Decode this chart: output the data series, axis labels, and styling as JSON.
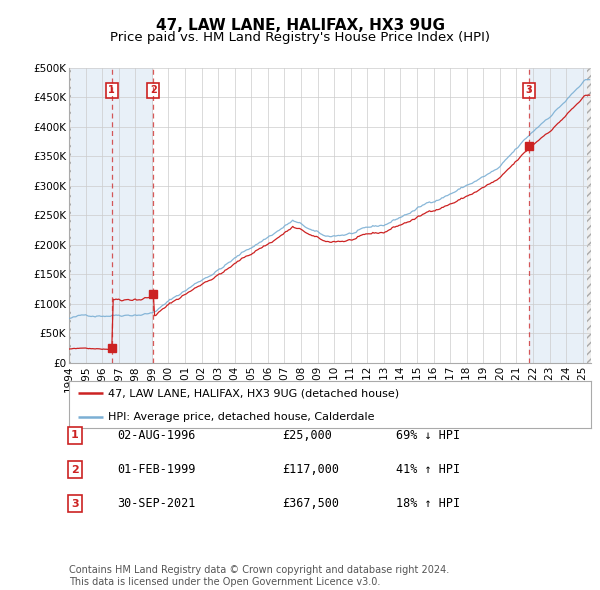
{
  "title": "47, LAW LANE, HALIFAX, HX3 9UG",
  "subtitle": "Price paid vs. HM Land Registry's House Price Index (HPI)",
  "ylim": [
    0,
    500000
  ],
  "yticks": [
    0,
    50000,
    100000,
    150000,
    200000,
    250000,
    300000,
    350000,
    400000,
    450000,
    500000
  ],
  "ytick_labels": [
    "£0",
    "£50K",
    "£100K",
    "£150K",
    "£200K",
    "£250K",
    "£300K",
    "£350K",
    "£400K",
    "£450K",
    "£500K"
  ],
  "hpi_color": "#7bafd4",
  "price_color": "#cc2222",
  "background_color": "#ffffff",
  "grid_color": "#cccccc",
  "shade_color": "#dce8f5",
  "sale_events": [
    {
      "date_num": 1996.58,
      "price": 25000,
      "label": "1"
    },
    {
      "date_num": 1999.08,
      "price": 117000,
      "label": "2"
    },
    {
      "date_num": 2021.75,
      "price": 367500,
      "label": "3"
    }
  ],
  "legend_entries": [
    {
      "label": "47, LAW LANE, HALIFAX, HX3 9UG (detached house)",
      "color": "#cc2222"
    },
    {
      "label": "HPI: Average price, detached house, Calderdale",
      "color": "#7bafd4"
    }
  ],
  "table_rows": [
    {
      "num": "1",
      "date": "02-AUG-1996",
      "price": "£25,000",
      "change": "69% ↓ HPI"
    },
    {
      "num": "2",
      "date": "01-FEB-1999",
      "price": "£117,000",
      "change": "41% ↑ HPI"
    },
    {
      "num": "3",
      "date": "30-SEP-2021",
      "price": "£367,500",
      "change": "18% ↑ HPI"
    }
  ],
  "footer": "Contains HM Land Registry data © Crown copyright and database right 2024.\nThis data is licensed under the Open Government Licence v3.0.",
  "title_fontsize": 11,
  "subtitle_fontsize": 9.5,
  "tick_fontsize": 7.5,
  "legend_fontsize": 8,
  "table_fontsize": 8.5,
  "footer_fontsize": 7
}
